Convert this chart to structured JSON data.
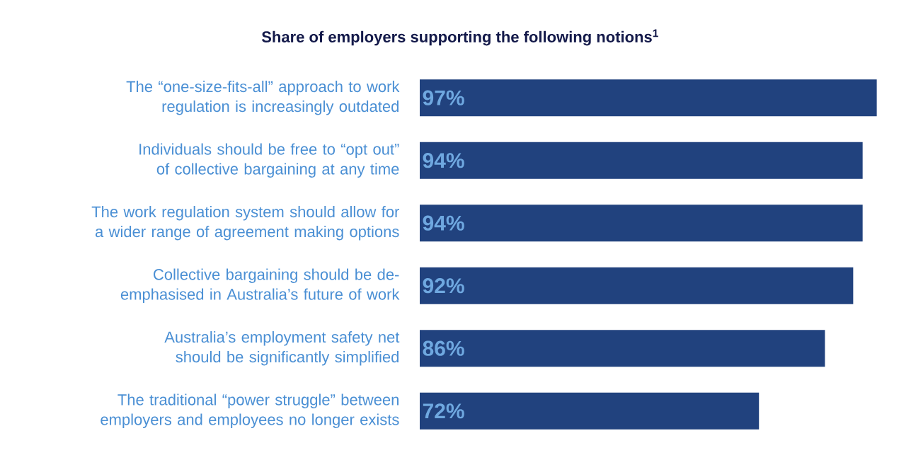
{
  "chart_data": {
    "type": "bar",
    "orientation": "horizontal",
    "title": "Share of employers supporting the following notions$^{1}$",
    "categories": [
      "The “one-size-fits-all” approach to work regulation is increasingly outdated",
      "Individuals should be free to “opt out” of collective bargaining at any time",
      "The work regulation system should allow for a wider range of agreement making options",
      "Collective bargaining should be de-emphasised in Australia’s future of work",
      "Australia’s employment safety net should be significantly simplified",
      "The traditional “power struggle” between employers and employees no longer exists"
    ],
    "values": [
      97,
      94,
      94,
      92,
      86,
      72
    ],
    "value_labels": [
      "97%",
      "94%",
      "94%",
      "92%",
      "86%",
      "72%"
    ],
    "color": "#21427e"
  }
}
